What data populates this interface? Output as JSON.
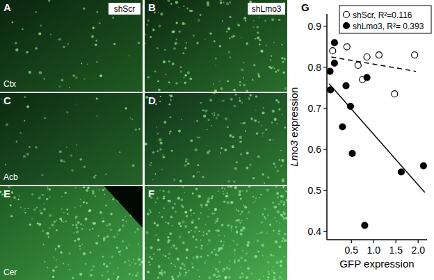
{
  "panels": [
    {
      "label": "A",
      "tag": "shScr",
      "region": "Ctx"
    },
    {
      "label": "B",
      "tag": "shLmo3",
      "region": null
    },
    {
      "label": "C",
      "tag": null,
      "region": "Acb"
    },
    {
      "label": "D",
      "tag": null,
      "region": null
    },
    {
      "label": "E",
      "tag": null,
      "region": "Cer"
    },
    {
      "label": "F",
      "tag": null,
      "region": null
    }
  ],
  "chart_label": "G",
  "chart_data": {
    "type": "scatter",
    "x_label": "GFP expression",
    "y_label": "Lmo3 expression",
    "xlim": [
      -0.05,
      2.2
    ],
    "ylim": [
      0.38,
      0.93
    ],
    "xticks": [
      0.5,
      {
        "value": 1,
        "label": "1.0"
      },
      1.5,
      {
        "value": 2,
        "label": "2.0"
      }
    ],
    "yticks": [
      0.4,
      0.5,
      0.6,
      0.7,
      0.8,
      0.9
    ],
    "grid": false,
    "legend": "top-right",
    "series": [
      {
        "name": "shScr, R²=0.116",
        "color": "#000000",
        "marker": "open_circle",
        "x": [
          0.08,
          0.4,
          0.65,
          0.75,
          0.85,
          1.12,
          1.47,
          1.92
        ],
        "values": [
          0.84,
          0.85,
          0.805,
          0.77,
          0.825,
          0.83,
          0.735,
          0.83
        ]
      },
      {
        "name": "shLmo3, R²= 0.393",
        "color": "#000000",
        "marker": "filled_circle",
        "x": [
          0.02,
          0.03,
          0.12,
          0.12,
          0.3,
          0.38,
          0.48,
          0.52,
          0.8,
          0.85,
          1.62,
          2.12
        ],
        "values": [
          0.79,
          0.745,
          0.86,
          0.81,
          0.655,
          0.755,
          0.705,
          0.59,
          0.415,
          0.775,
          0.545,
          0.56
        ]
      }
    ],
    "trend_lines": [
      {
        "line_style": "dashed",
        "color": "#000000",
        "x": [
          0.05,
          1.95
        ],
        "values": [
          0.825,
          0.79
        ]
      },
      {
        "line_style": "solid",
        "color": "#000000",
        "x": [
          0,
          2.15
        ],
        "values": [
          0.76,
          0.495
        ]
      }
    ]
  }
}
